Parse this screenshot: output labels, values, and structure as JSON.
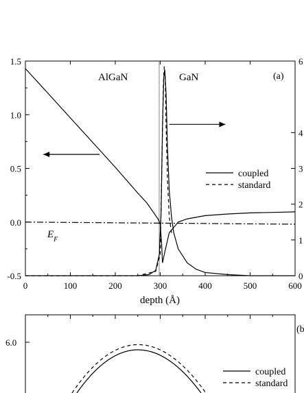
{
  "chart_data": [
    {
      "type": "line",
      "panel_label": "(a)",
      "xlabel": "depth (Å)",
      "xlim": [
        0,
        600
      ],
      "x_ticks": [
        "0",
        "100",
        "200",
        "300",
        "400",
        "500",
        "600"
      ],
      "ylim": [
        -0.5,
        1.5
      ],
      "y_ticks": [
        "-0.5",
        "0.0",
        "0.5",
        "1.0",
        "1.5"
      ],
      "y2_ticks": [
        "0",
        "1",
        "2",
        "3",
        "4",
        "6"
      ],
      "region_labels": [
        "AlGaN",
        "GaN"
      ],
      "fermi_label": "E",
      "fermi_sub": "F",
      "legend": [
        "coupled",
        "standard"
      ],
      "legend_position": "center-right",
      "series": [
        {
          "name": "coupled",
          "style": "solid",
          "x": [
            0,
            50,
            100,
            150,
            200,
            250,
            270,
            285,
            295,
            300,
            303,
            305,
            310,
            320,
            340,
            360,
            400,
            450,
            500,
            550,
            600
          ],
          "y": [
            1.43,
            1.2,
            0.97,
            0.74,
            0.51,
            0.27,
            0.18,
            0.09,
            0.03,
            -0.02,
            -0.2,
            -0.38,
            -0.28,
            -0.1,
            0.0,
            0.03,
            0.06,
            0.075,
            0.085,
            0.09,
            0.095
          ]
        },
        {
          "name": "coupled-density",
          "style": "solid",
          "x": [
            0,
            250,
            275,
            290,
            298,
            302,
            305,
            308,
            310,
            313,
            316,
            320,
            325,
            330,
            340,
            360,
            380,
            400,
            450,
            500,
            600
          ],
          "y": [
            -0.5,
            -0.5,
            -0.49,
            -0.45,
            -0.3,
            0.1,
            0.9,
            1.35,
            1.42,
            1.2,
            0.7,
            0.3,
            0.05,
            -0.1,
            -0.25,
            -0.38,
            -0.44,
            -0.47,
            -0.49,
            -0.5,
            -0.5
          ]
        },
        {
          "name": "standard",
          "style": "dashed",
          "x": [
            0,
            250,
            290,
            300,
            304,
            307,
            309,
            311,
            313,
            316,
            320,
            325
          ],
          "y": [
            -0.5,
            -0.5,
            -0.46,
            -0.3,
            0.6,
            1.3,
            1.45,
            1.35,
            0.9,
            0.4,
            0.05,
            -0.1
          ]
        },
        {
          "name": "fermi-level",
          "style": "dashdot",
          "x": [
            0,
            600
          ],
          "y": [
            0.0,
            -0.02
          ]
        }
      ],
      "arrows": [
        {
          "direction": "left",
          "x_from": 165,
          "x_to": 40,
          "y": 0.63
        },
        {
          "direction": "right",
          "x_from": 320,
          "x_to": 445,
          "y": 0.91
        }
      ]
    },
    {
      "type": "line",
      "panel_label": "(b",
      "y_ticks": [
        "6.0"
      ],
      "legend": [
        "coupled",
        "standard"
      ],
      "legend_position": "top-right",
      "series": [
        {
          "name": "coupled",
          "style": "solid"
        },
        {
          "name": "standard",
          "style": "dashed"
        }
      ]
    }
  ]
}
